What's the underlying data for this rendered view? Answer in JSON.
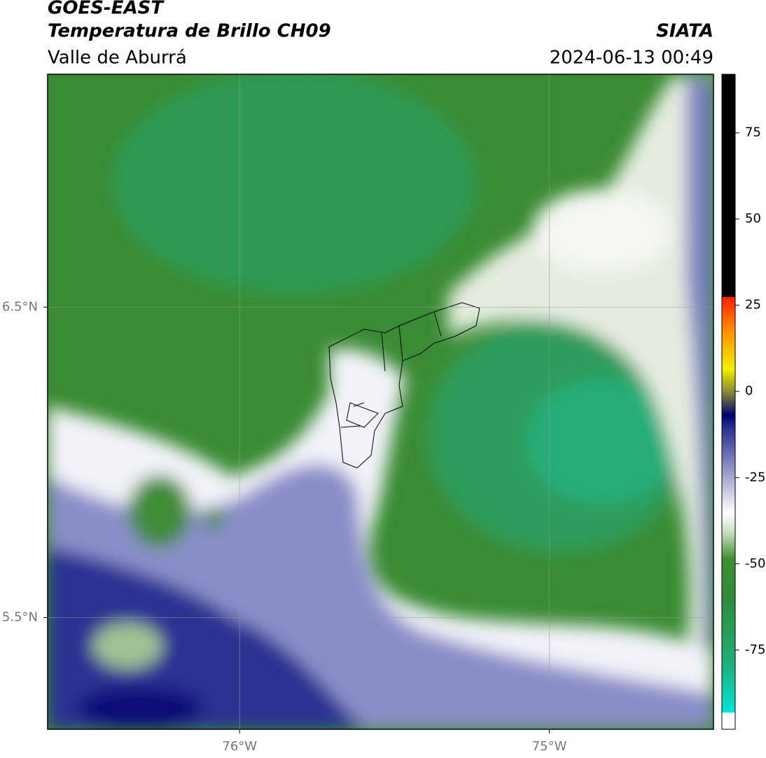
{
  "header": {
    "title": "GOES-EAST",
    "subtitle": "Temperatura de Brillo CH09",
    "region": "Valle de Aburrá",
    "source": "SIATA",
    "timestamp": "2024-06-13 00:49"
  },
  "map": {
    "lon_lim": [
      -76.62,
      -74.47
    ],
    "lat_lim": [
      5.14,
      7.25
    ],
    "lon_ticks": [
      {
        "value": -76,
        "label": "76°W"
      },
      {
        "value": -75,
        "label": "75°W"
      }
    ],
    "lat_ticks": [
      {
        "value": 6.5,
        "label": "6.5°N"
      },
      {
        "value": 5.5,
        "label": "5.5°N"
      }
    ],
    "grid": true
  },
  "colorbar": {
    "lim": [
      -98,
      92
    ],
    "ticks": [
      75,
      50,
      25,
      0,
      -25,
      -50,
      -75
    ]
  }
}
